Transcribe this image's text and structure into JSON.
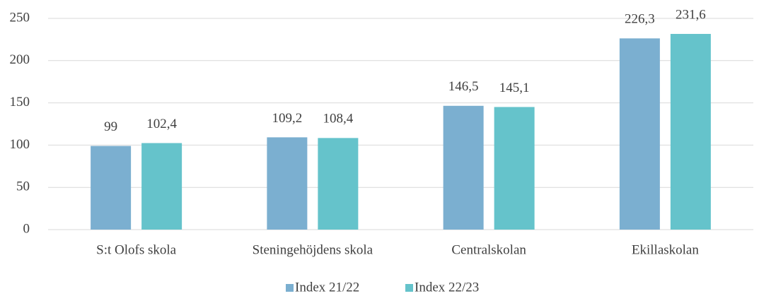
{
  "chart_data": {
    "type": "bar",
    "categories": [
      "S:t Olofs skola",
      "Steningehöjdens skola",
      "Centralskolan",
      "Ekillaskolan"
    ],
    "series": [
      {
        "name": "Index 21/22",
        "color": "#7bafd0",
        "values": [
          99,
          109.2,
          146.5,
          226.3
        ],
        "value_labels": [
          "99",
          "109,2",
          "146,5",
          "226,3"
        ]
      },
      {
        "name": "Index 22/23",
        "color": "#65c3cb",
        "values": [
          102.4,
          108.4,
          145.1,
          231.6
        ],
        "value_labels": [
          "102,4",
          "108,4",
          "145,1",
          "231,6"
        ]
      }
    ],
    "ylim": [
      0,
      250
    ],
    "yticks": [
      0,
      50,
      100,
      150,
      200,
      250
    ],
    "grid": true,
    "legend": "bottom"
  }
}
